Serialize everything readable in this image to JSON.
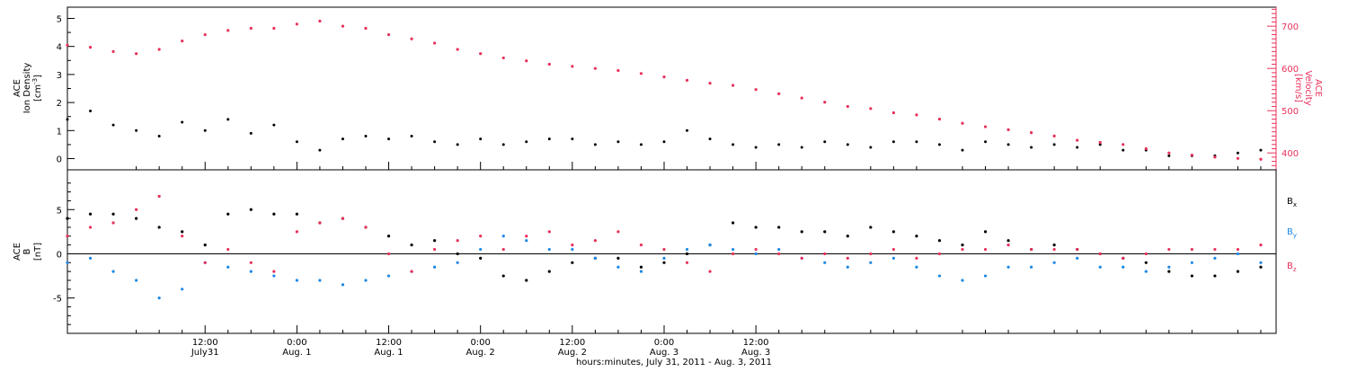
{
  "chart_data": [
    {
      "type": "scatter",
      "panel": "top",
      "left_axis_label_lines": [
        "ACE",
        "Ion Density"
      ],
      "left_axis_unit_base": "[cm",
      "left_axis_unit_sup": "-3",
      "left_axis_unit_end": "]",
      "right_axis_label_lines": [
        "ACE",
        "Velocity"
      ],
      "right_axis_unit": "[km/s]",
      "ylim_left": [
        -0.4,
        5.4
      ],
      "yticks_left": [
        "0",
        "1",
        "2",
        "3",
        "4",
        "5"
      ],
      "ylim_right": [
        360,
        745
      ],
      "yticks_right": [
        "400",
        "500",
        "600",
        "700"
      ],
      "xlim_hours": [
        -6,
        152
      ],
      "series": [
        {
          "color": "#000000",
          "axis": "left",
          "x": [
            -6,
            -3,
            0,
            3,
            6,
            9,
            12,
            15,
            18,
            21,
            24,
            27,
            30,
            33,
            36,
            39,
            42,
            45,
            48,
            51,
            54,
            57,
            60,
            63,
            66,
            69,
            72,
            75,
            78,
            81,
            84,
            87,
            90,
            93,
            96,
            99,
            102,
            105,
            108,
            111,
            114,
            117,
            120,
            123,
            126,
            129,
            132,
            135,
            138,
            141,
            144,
            147,
            150
          ],
          "y": [
            1.4,
            1.7,
            1.2,
            1.0,
            0.8,
            1.3,
            1.0,
            1.4,
            0.9,
            1.2,
            0.6,
            0.3,
            0.7,
            0.8,
            0.7,
            0.8,
            0.6,
            0.5,
            0.7,
            0.5,
            0.6,
            0.7,
            0.7,
            0.5,
            0.6,
            0.5,
            0.6,
            1.0,
            0.7,
            0.5,
            0.4,
            0.5,
            0.4,
            0.6,
            0.5,
            0.4,
            0.6,
            0.6,
            0.5,
            0.3,
            0.6,
            0.5,
            0.4,
            0.5,
            0.4,
            0.5,
            0.3,
            0.3,
            0.1,
            0.1,
            0.1,
            0.2,
            0.3
          ]
        },
        {
          "color": "#e8305a",
          "axis": "right",
          "x": [
            -6,
            -3,
            0,
            3,
            6,
            9,
            12,
            15,
            18,
            21,
            24,
            27,
            30,
            33,
            36,
            39,
            42,
            45,
            48,
            51,
            54,
            57,
            60,
            63,
            66,
            69,
            72,
            75,
            78,
            81,
            84,
            87,
            90,
            93,
            96,
            99,
            102,
            105,
            108,
            111,
            114,
            117,
            120,
            123,
            126,
            129,
            132,
            135,
            138,
            141,
            144,
            147,
            150
          ],
          "y": [
            655,
            650,
            640,
            635,
            645,
            665,
            680,
            690,
            695,
            695,
            705,
            712,
            700,
            695,
            680,
            670,
            660,
            645,
            635,
            625,
            618,
            610,
            605,
            600,
            595,
            588,
            580,
            572,
            565,
            560,
            550,
            540,
            530,
            520,
            510,
            505,
            495,
            490,
            480,
            470,
            462,
            455,
            448,
            440,
            430,
            425,
            420,
            410,
            400,
            395,
            390,
            387,
            385
          ]
        }
      ]
    },
    {
      "type": "scatter",
      "panel": "bottom",
      "y_axis_label_lines": [
        "ACE",
        "B"
      ],
      "y_axis_unit": "[nT]",
      "ylim": [
        -9.0,
        9.5
      ],
      "yticks": [
        "-5",
        "0",
        "5"
      ],
      "xlim_hours": [
        -6,
        152
      ],
      "legend": [
        {
          "base": "B",
          "sub": "x",
          "color": "#000000"
        },
        {
          "base": "B",
          "sub": "y",
          "color": "#1e88e5"
        },
        {
          "base": "B",
          "sub": "z",
          "color": "#e8305a"
        }
      ],
      "series": [
        {
          "name": "Bx",
          "color": "#000000",
          "x": [
            -6,
            -3,
            0,
            3,
            6,
            9,
            12,
            15,
            18,
            21,
            24,
            27,
            30,
            33,
            36,
            39,
            42,
            45,
            48,
            51,
            54,
            57,
            60,
            63,
            66,
            69,
            72,
            75,
            78,
            81,
            84,
            87,
            90,
            93,
            96,
            99,
            102,
            105,
            108,
            111,
            114,
            117,
            120,
            123,
            126,
            129,
            132,
            135,
            138,
            141,
            144,
            147,
            150
          ],
          "y": [
            4.0,
            4.5,
            4.5,
            4.0,
            3.0,
            2.5,
            1.0,
            4.5,
            5.0,
            4.5,
            4.5,
            3.5,
            4.0,
            3.0,
            2.0,
            1.0,
            1.5,
            0.0,
            -0.5,
            -2.5,
            -3.0,
            -2.0,
            -1.0,
            -0.5,
            -0.5,
            -1.5,
            -1.0,
            0.0,
            1.0,
            3.5,
            3.0,
            3.0,
            2.5,
            2.5,
            2.0,
            3.0,
            2.5,
            2.0,
            1.5,
            1.0,
            2.5,
            1.5,
            0.5,
            1.0,
            0.5,
            0.0,
            -0.5,
            -1.0,
            -2.0,
            -2.5,
            -2.5,
            -2.0,
            -1.5
          ]
        },
        {
          "name": "By",
          "color": "#1e88e5",
          "x": [
            -6,
            -3,
            0,
            3,
            6,
            9,
            12,
            15,
            18,
            21,
            24,
            27,
            30,
            33,
            36,
            39,
            42,
            45,
            48,
            51,
            54,
            57,
            60,
            63,
            66,
            69,
            72,
            75,
            78,
            81,
            84,
            87,
            90,
            93,
            96,
            99,
            102,
            105,
            108,
            111,
            114,
            117,
            120,
            123,
            126,
            129,
            132,
            135,
            138,
            141,
            144,
            147,
            150
          ],
          "y": [
            -1.0,
            -0.5,
            -2.0,
            -3.0,
            -5.0,
            -4.0,
            -1.0,
            -1.5,
            -2.0,
            -2.5,
            -3.0,
            -3.0,
            -3.5,
            -3.0,
            -2.5,
            -2.0,
            -1.5,
            -1.0,
            0.5,
            2.0,
            1.5,
            0.5,
            0.5,
            -0.5,
            -1.5,
            -2.0,
            -0.5,
            0.5,
            1.0,
            0.5,
            0.0,
            0.5,
            -0.5,
            -1.0,
            -1.5,
            -1.0,
            -0.5,
            -1.5,
            -2.5,
            -3.0,
            -2.5,
            -1.5,
            -1.5,
            -1.0,
            -0.5,
            -1.5,
            -1.5,
            -2.0,
            -1.5,
            -1.0,
            -0.5,
            0.0,
            -1.0
          ]
        },
        {
          "name": "Bz",
          "color": "#e8305a",
          "x": [
            -6,
            -3,
            0,
            3,
            6,
            9,
            12,
            15,
            18,
            21,
            24,
            27,
            30,
            33,
            36,
            39,
            42,
            45,
            48,
            51,
            54,
            57,
            60,
            63,
            66,
            69,
            72,
            75,
            78,
            81,
            84,
            87,
            90,
            93,
            96,
            99,
            102,
            105,
            108,
            111,
            114,
            117,
            120,
            123,
            126,
            129,
            132,
            135,
            138,
            141,
            144,
            147,
            150
          ],
          "y": [
            2.0,
            3.0,
            3.5,
            5.0,
            6.5,
            2.0,
            -1.0,
            0.5,
            -1.0,
            -2.0,
            2.5,
            3.5,
            4.0,
            3.0,
            0.0,
            -2.0,
            0.5,
            1.5,
            2.0,
            0.5,
            2.0,
            2.5,
            1.0,
            1.5,
            2.5,
            1.0,
            0.5,
            -1.0,
            -2.0,
            0.0,
            0.5,
            0.0,
            -0.5,
            0.0,
            -0.5,
            0.0,
            0.5,
            -0.5,
            0.0,
            0.5,
            0.5,
            1.0,
            0.5,
            0.5,
            0.5,
            0.0,
            -0.5,
            0.0,
            0.5,
            0.5,
            0.5,
            0.5,
            1.0
          ]
        }
      ]
    }
  ],
  "x_axis": {
    "ticks": [
      {
        "hours": 12,
        "time": "12:00",
        "day": "July31"
      },
      {
        "hours": 24,
        "time": "0:00",
        "day": "Aug. 1"
      },
      {
        "hours": 36,
        "time": "12:00",
        "day": "Aug. 1"
      },
      {
        "hours": 48,
        "time": "0:00",
        "day": "Aug. 2"
      },
      {
        "hours": 60,
        "time": "12:00",
        "day": "Aug. 2"
      },
      {
        "hours": 72,
        "time": "0:00",
        "day": "Aug. 3"
      },
      {
        "hours": 84,
        "time": "12:00",
        "day": "Aug. 3"
      }
    ],
    "label": "hours:minutes, July 31, 2011 - Aug.  3, 2011"
  }
}
